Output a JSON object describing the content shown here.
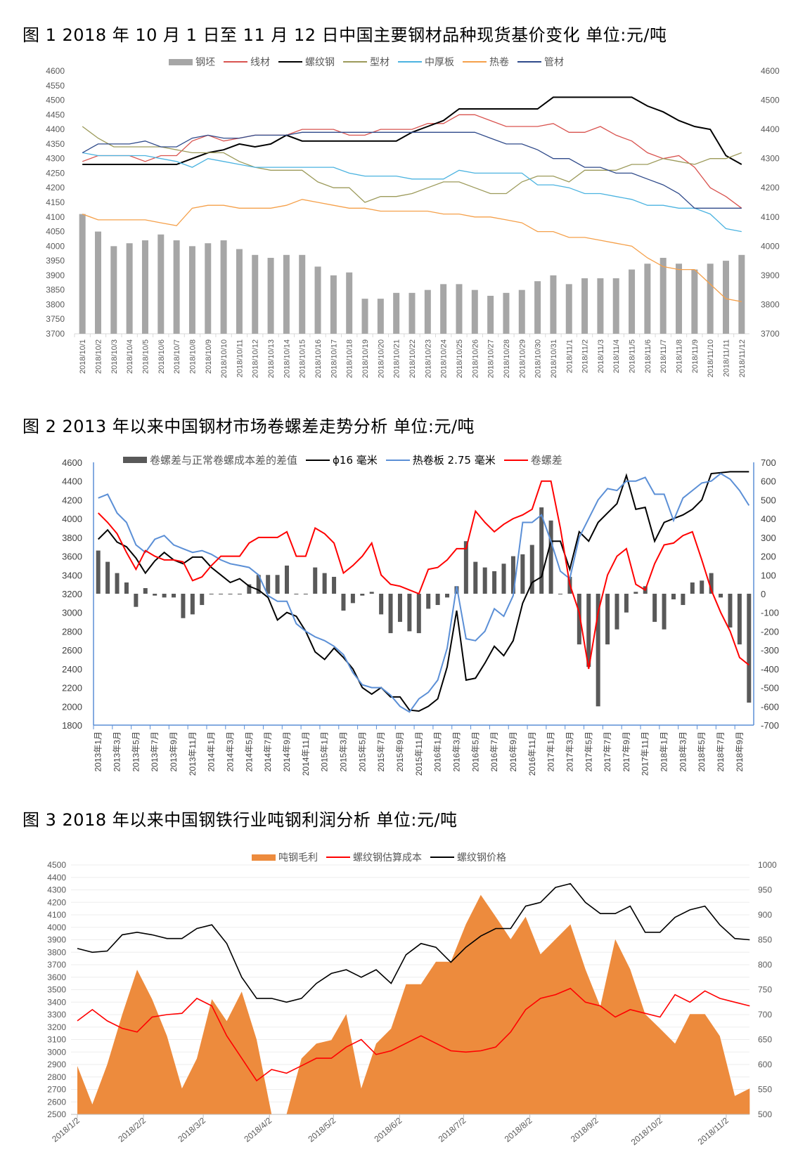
{
  "chart_data": [
    {
      "type": "bar+line",
      "title": "图 1 2018 年 10 月 1 日至 11 月 12 日中国主要钢材品种现货基价变化  单位:元/吨",
      "ylim": [
        3700,
        4600
      ],
      "y_ticks_left": [
        3700,
        3750,
        3800,
        3850,
        3900,
        3950,
        4000,
        4050,
        4100,
        4150,
        4200,
        4250,
        4300,
        4350,
        4400,
        4450,
        4500,
        4550,
        4600
      ],
      "y_ticks_right": [
        3700,
        3800,
        3900,
        4000,
        4100,
        4200,
        4300,
        4400,
        4500,
        4600
      ],
      "legend_position": "top",
      "grid": false,
      "categories": [
        "2018/10/1",
        "2018/10/2",
        "2018/10/3",
        "2018/10/4",
        "2018/10/5",
        "2018/10/6",
        "2018/10/7",
        "2018/10/8",
        "2018/10/9",
        "2018/10/10",
        "2018/10/11",
        "2018/10/12",
        "2018/10/13",
        "2018/10/14",
        "2018/10/15",
        "2018/10/16",
        "2018/10/17",
        "2018/10/18",
        "2018/10/19",
        "2018/10/20",
        "2018/10/21",
        "2018/10/22",
        "2018/10/23",
        "2018/10/24",
        "2018/10/25",
        "2018/10/26",
        "2018/10/27",
        "2018/10/28",
        "2018/10/29",
        "2018/10/30",
        "2018/10/31",
        "2018/11/1",
        "2018/11/2",
        "2018/11/3",
        "2018/11/4",
        "2018/11/5",
        "2018/11/6",
        "2018/11/7",
        "2018/11/8",
        "2018/11/9",
        "2018/11/10",
        "2018/11/11",
        "2018/11/12"
      ],
      "series": [
        {
          "name": "钢坯",
          "kind": "bar",
          "color": "#a6a6a6",
          "values": [
            4110,
            4050,
            4000,
            4010,
            4020,
            4040,
            4020,
            4000,
            4010,
            4020,
            3990,
            3970,
            3960,
            3970,
            3970,
            3930,
            3900,
            3910,
            3820,
            3820,
            3840,
            3840,
            3850,
            3870,
            3870,
            3850,
            3830,
            3840,
            3850,
            3880,
            3900,
            3870,
            3890,
            3890,
            3890,
            3920,
            3940,
            3960,
            3940,
            3920,
            3940,
            3950,
            3970
          ]
        },
        {
          "name": "线材",
          "kind": "line",
          "color": "#d9534f",
          "values": [
            4290,
            4310,
            4310,
            4310,
            4290,
            4310,
            4310,
            4360,
            4380,
            4360,
            4370,
            4380,
            4380,
            4380,
            4400,
            4400,
            4400,
            4380,
            4380,
            4400,
            4400,
            4400,
            4420,
            4420,
            4450,
            4450,
            4430,
            4410,
            4410,
            4410,
            4420,
            4390,
            4390,
            4410,
            4380,
            4360,
            4320,
            4300,
            4310,
            4270,
            4200,
            4170,
            4130
          ]
        },
        {
          "name": "螺纹钢",
          "kind": "line",
          "color": "#000000",
          "values": [
            4280,
            4280,
            4280,
            4280,
            4280,
            4280,
            4280,
            4300,
            4320,
            4330,
            4350,
            4340,
            4350,
            4380,
            4360,
            4360,
            4360,
            4360,
            4360,
            4360,
            4360,
            4390,
            4410,
            4430,
            4470,
            4470,
            4470,
            4470,
            4470,
            4470,
            4510,
            4510,
            4510,
            4510,
            4510,
            4510,
            4480,
            4460,
            4430,
            4410,
            4400,
            4310,
            4280
          ]
        },
        {
          "name": "型材",
          "kind": "line",
          "color": "#9c9a5a",
          "values": [
            4410,
            4370,
            4340,
            4340,
            4340,
            4340,
            4330,
            4320,
            4320,
            4320,
            4290,
            4270,
            4260,
            4260,
            4260,
            4220,
            4200,
            4200,
            4150,
            4170,
            4170,
            4180,
            4200,
            4220,
            4220,
            4200,
            4180,
            4180,
            4220,
            4240,
            4240,
            4220,
            4260,
            4260,
            4260,
            4280,
            4280,
            4300,
            4290,
            4280,
            4300,
            4300,
            4320
          ]
        },
        {
          "name": "中厚板",
          "kind": "line",
          "color": "#4bb3e0",
          "values": [
            4320,
            4310,
            4310,
            4310,
            4310,
            4300,
            4290,
            4270,
            4300,
            4290,
            4280,
            4270,
            4270,
            4270,
            4270,
            4270,
            4270,
            4250,
            4240,
            4240,
            4240,
            4230,
            4230,
            4230,
            4260,
            4250,
            4250,
            4250,
            4250,
            4210,
            4210,
            4200,
            4180,
            4180,
            4170,
            4160,
            4140,
            4140,
            4130,
            4130,
            4110,
            4060,
            4050
          ]
        },
        {
          "name": "热卷",
          "kind": "line",
          "color": "#f5a04a",
          "values": [
            4110,
            4090,
            4090,
            4090,
            4090,
            4080,
            4070,
            4130,
            4140,
            4140,
            4130,
            4130,
            4130,
            4140,
            4160,
            4150,
            4140,
            4130,
            4130,
            4120,
            4120,
            4120,
            4120,
            4110,
            4110,
            4100,
            4100,
            4090,
            4080,
            4050,
            4050,
            4030,
            4030,
            4020,
            4010,
            4000,
            3960,
            3930,
            3920,
            3920,
            3870,
            3820,
            3810
          ]
        },
        {
          "name": "管材",
          "kind": "line",
          "color": "#2f4a8a",
          "values": [
            4320,
            4350,
            4350,
            4350,
            4360,
            4340,
            4340,
            4370,
            4380,
            4370,
            4370,
            4380,
            4380,
            4380,
            4390,
            4390,
            4390,
            4390,
            4390,
            4390,
            4390,
            4390,
            4390,
            4390,
            4390,
            4390,
            4370,
            4350,
            4350,
            4330,
            4300,
            4300,
            4270,
            4270,
            4250,
            4250,
            4230,
            4210,
            4180,
            4130,
            4130,
            4130,
            4130
          ]
        }
      ]
    },
    {
      "type": "bar+line",
      "title": "图 2  2013 年以来中国钢材市场卷螺差走势分析  单位:元/吨",
      "ylim_left": [
        1800,
        4600
      ],
      "ylim_right": [
        -700,
        700
      ],
      "y_ticks_left": [
        1800,
        2000,
        2200,
        2400,
        2600,
        2800,
        3000,
        3200,
        3400,
        3600,
        3800,
        4000,
        4200,
        4400,
        4600
      ],
      "y_ticks_right": [
        -700,
        -600,
        -500,
        -400,
        -300,
        -200,
        -100,
        0,
        100,
        200,
        300,
        400,
        500,
        600,
        700
      ],
      "legend_position": "top",
      "grid": false,
      "x_start": "2013年1月",
      "x_tick_labels": [
        "2013年1月",
        "2013年3月",
        "2013年5月",
        "2013年7月",
        "2013年9月",
        "2013年11月",
        "2014年1月",
        "2014年3月",
        "2014年5月",
        "2014年7月",
        "2014年9月",
        "2014年11月",
        "2015年1月",
        "2015年3月",
        "2015年5月",
        "2015年7月",
        "2015年9月",
        "2015年11月",
        "2016年1月",
        "2016年3月",
        "2016年5月",
        "2016年7月",
        "2016年9月",
        "2016年11月",
        "2017年1月",
        "2017年3月",
        "2017年5月",
        "2017年7月",
        "2017年9月",
        "2017年11月",
        "2018年1月",
        "2018年3月",
        "2018年5月",
        "2018年7月",
        "2018年9月"
      ],
      "series": [
        {
          "name": "卷螺差与正常卷螺成本差的差值",
          "kind": "bar",
          "axis": "right",
          "color": "#595959",
          "values": [
            230,
            170,
            110,
            60,
            -70,
            30,
            -10,
            -20,
            -20,
            -130,
            -110,
            -60,
            0,
            0,
            0,
            0,
            50,
            100,
            100,
            100,
            150,
            0,
            0,
            140,
            110,
            90,
            -90,
            -50,
            -10,
            10,
            -110,
            -210,
            -150,
            -200,
            -210,
            -80,
            -60,
            -20,
            40,
            280,
            170,
            140,
            120,
            160,
            200,
            210,
            260,
            460,
            390,
            0,
            90,
            -270,
            -390,
            -600,
            -270,
            -190,
            -100,
            10,
            40,
            -150,
            -190,
            -30,
            -60,
            60,
            70,
            110,
            -20,
            -180,
            -270,
            -580
          ]
        },
        {
          "name": "ϕ16 毫米",
          "kind": "line",
          "axis": "left",
          "color": "#000000",
          "values": [
            3780,
            3880,
            3750,
            3700,
            3580,
            3420,
            3550,
            3640,
            3560,
            3520,
            3590,
            3590,
            3480,
            3400,
            3320,
            3360,
            3280,
            3240,
            3160,
            2920,
            3000,
            2960,
            2800,
            2580,
            2500,
            2620,
            2520,
            2400,
            2200,
            2130,
            2200,
            2100,
            2100,
            1960,
            1950,
            2000,
            2080,
            2420,
            3020,
            2280,
            2300,
            2460,
            2640,
            2540,
            2700,
            3100,
            3320,
            3380,
            3760,
            3760,
            3460,
            3860,
            3760,
            3960,
            4060,
            4160,
            4460,
            4100,
            4120,
            3760,
            3960,
            4000,
            4040,
            4100,
            4200,
            4480,
            4490,
            4500,
            4500,
            4500
          ]
        },
        {
          "name": "热卷板 2.75 毫米",
          "kind": "line",
          "axis": "left",
          "color": "#5b8fd6",
          "values": [
            4220,
            4260,
            4060,
            3960,
            3720,
            3640,
            3780,
            3820,
            3720,
            3680,
            3640,
            3660,
            3620,
            3560,
            3520,
            3500,
            3480,
            3400,
            3180,
            3120,
            3120,
            2880,
            2800,
            2740,
            2700,
            2640,
            2550,
            2360,
            2230,
            2200,
            2200,
            2120,
            2000,
            1940,
            2080,
            2150,
            2280,
            2620,
            3280,
            2720,
            2700,
            2800,
            3040,
            2960,
            3180,
            3960,
            3960,
            4040,
            3760,
            3440,
            3360,
            3800,
            4000,
            4200,
            4320,
            4300,
            4400,
            4400,
            4440,
            4260,
            4260,
            3980,
            4220,
            4300,
            4380,
            4400,
            4480,
            4420,
            4300,
            4140
          ]
        },
        {
          "name": "卷螺差",
          "kind": "line",
          "axis": "right",
          "color": "#ff0000",
          "values": [
            430,
            380,
            320,
            220,
            130,
            230,
            200,
            180,
            180,
            170,
            70,
            90,
            150,
            200,
            200,
            200,
            270,
            300,
            300,
            300,
            330,
            200,
            200,
            350,
            320,
            270,
            110,
            150,
            200,
            270,
            100,
            50,
            40,
            20,
            0,
            130,
            140,
            180,
            240,
            240,
            440,
            380,
            330,
            370,
            400,
            420,
            450,
            600,
            600,
            350,
            50,
            -100,
            -400,
            -100,
            100,
            200,
            240,
            50,
            20,
            160,
            260,
            270,
            310,
            330,
            180,
            20,
            -100,
            -200,
            -340,
            -380
          ]
        }
      ]
    },
    {
      "type": "area+line",
      "title": "图 3  2018 年以来中国钢铁行业吨钢利润分析  单位:元/吨",
      "ylim_left": [
        2500,
        4500
      ],
      "ylim_right": [
        500,
        1000
      ],
      "y_ticks_left": [
        2500,
        2600,
        2700,
        2800,
        2900,
        3000,
        3100,
        3200,
        3300,
        3400,
        3500,
        3600,
        3700,
        3800,
        3900,
        4000,
        4100,
        4200,
        4300,
        4400,
        4500
      ],
      "y_ticks_right": [
        500,
        550,
        600,
        650,
        700,
        750,
        800,
        850,
        900,
        950,
        1000
      ],
      "legend_position": "top",
      "grid": true,
      "x_unit": "days since 2018/1/2",
      "x_tick_labels": [
        "2018/1/2",
        "2018/2/2",
        "2018/3/2",
        "2018/4/2",
        "2018/5/2",
        "2018/6/2",
        "2018/7/2",
        "2018/8/2",
        "2018/9/2",
        "2018/10/2",
        "2018/11/2"
      ],
      "x_tick_days": [
        0,
        31,
        59,
        90,
        120,
        151,
        181,
        212,
        243,
        273,
        304
      ],
      "x_step_days": 7,
      "series": [
        {
          "name": "吨钢毛利",
          "kind": "area",
          "axis": "right",
          "color": "#ed8b3d",
          "values": [
            597,
            520,
            600,
            700,
            790,
            731,
            657,
            552,
            612,
            731,
            687,
            746,
            650,
            500,
            500,
            612,
            642,
            649,
            701,
            552,
            642,
            672,
            761,
            761,
            806,
            806,
            881,
            940,
            896,
            851,
            896,
            821,
            851,
            881,
            791,
            716,
            851,
            791,
            701,
            672,
            642,
            701,
            701,
            657,
            537,
            552
          ]
        },
        {
          "name": "螺纹钢估算成本",
          "kind": "line",
          "axis": "left",
          "color": "#ff0000",
          "values": [
            3250,
            3340,
            3250,
            3190,
            3160,
            3280,
            3300,
            3310,
            3430,
            3370,
            3130,
            2950,
            2770,
            2860,
            2830,
            2890,
            2950,
            2950,
            3040,
            3100,
            2980,
            3010,
            3070,
            3130,
            3070,
            3010,
            3000,
            3010,
            3040,
            3160,
            3340,
            3430,
            3460,
            3510,
            3400,
            3370,
            3280,
            3340,
            3310,
            3280,
            3460,
            3400,
            3490,
            3430,
            3400,
            3370
          ]
        },
        {
          "name": "螺纹钢价格",
          "kind": "line",
          "axis": "left",
          "color": "#000000",
          "values": [
            3830,
            3800,
            3810,
            3940,
            3960,
            3940,
            3910,
            3910,
            3990,
            4020,
            3870,
            3600,
            3430,
            3430,
            3400,
            3430,
            3550,
            3630,
            3660,
            3600,
            3660,
            3550,
            3780,
            3870,
            3840,
            3720,
            3840,
            3930,
            3990,
            3990,
            4170,
            4200,
            4320,
            4350,
            4200,
            4110,
            4110,
            4170,
            3960,
            3960,
            4080,
            4140,
            4170,
            4020,
            3910,
            3900
          ]
        }
      ]
    }
  ]
}
